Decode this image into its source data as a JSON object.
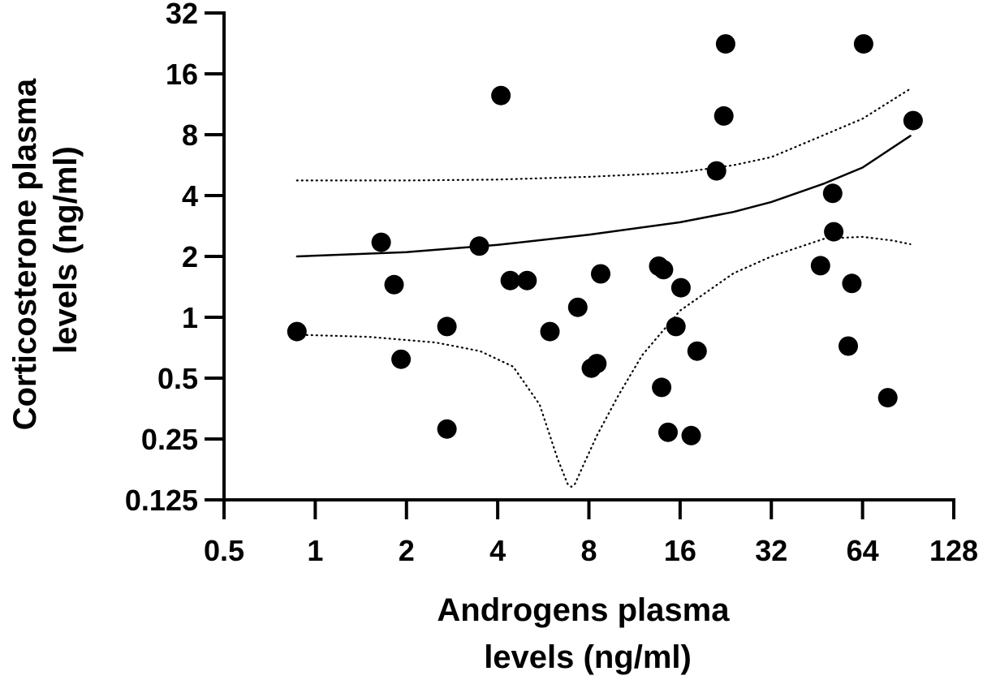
{
  "chart_data": {
    "type": "scatter",
    "xlabel": [
      "Androgens plasma",
      "levels (ng/ml)"
    ],
    "ylabel": [
      "Corticosterone plasma",
      "levels (ng/ml)"
    ],
    "xscale": "log2",
    "yscale": "log2",
    "xlim": [
      0.5,
      128
    ],
    "ylim": [
      0.125,
      32
    ],
    "xticks": [
      0.5,
      1,
      2,
      4,
      8,
      16,
      32,
      64,
      128
    ],
    "xtick_labels": [
      "0.5",
      "1",
      "2",
      "4",
      "8",
      "16",
      "32",
      "64",
      "128"
    ],
    "yticks": [
      0.125,
      0.25,
      0.5,
      1,
      2,
      4,
      8,
      16,
      32
    ],
    "ytick_labels": [
      "0.125",
      "0.25",
      "0.5",
      "1",
      "2",
      "4",
      "8",
      "16",
      "32"
    ],
    "grid": false,
    "points": [
      {
        "x": 0.87,
        "y": 0.85
      },
      {
        "x": 1.65,
        "y": 2.35
      },
      {
        "x": 1.82,
        "y": 1.45
      },
      {
        "x": 1.92,
        "y": 0.62
      },
      {
        "x": 2.72,
        "y": 0.9
      },
      {
        "x": 2.72,
        "y": 0.28
      },
      {
        "x": 3.48,
        "y": 2.25
      },
      {
        "x": 4.1,
        "y": 12.5
      },
      {
        "x": 4.4,
        "y": 1.52
      },
      {
        "x": 5.0,
        "y": 1.52
      },
      {
        "x": 5.95,
        "y": 0.85
      },
      {
        "x": 7.35,
        "y": 1.12
      },
      {
        "x": 8.15,
        "y": 0.56
      },
      {
        "x": 8.5,
        "y": 0.59
      },
      {
        "x": 8.75,
        "y": 1.64
      },
      {
        "x": 13.6,
        "y": 1.79
      },
      {
        "x": 14.1,
        "y": 1.72
      },
      {
        "x": 13.9,
        "y": 0.45
      },
      {
        "x": 14.6,
        "y": 0.27
      },
      {
        "x": 15.5,
        "y": 0.9
      },
      {
        "x": 16.1,
        "y": 1.4
      },
      {
        "x": 17.4,
        "y": 0.26
      },
      {
        "x": 18.2,
        "y": 0.68
      },
      {
        "x": 21.1,
        "y": 5.3
      },
      {
        "x": 22.3,
        "y": 9.9
      },
      {
        "x": 22.6,
        "y": 22.5
      },
      {
        "x": 46.5,
        "y": 1.8
      },
      {
        "x": 51.0,
        "y": 4.1
      },
      {
        "x": 51.4,
        "y": 2.65
      },
      {
        "x": 57.4,
        "y": 0.72
      },
      {
        "x": 59.0,
        "y": 1.47
      },
      {
        "x": 64.5,
        "y": 22.5
      },
      {
        "x": 77.5,
        "y": 0.4
      },
      {
        "x": 94.0,
        "y": 9.4
      }
    ],
    "fit_line": {
      "style": "solid",
      "x": [
        0.87,
        2,
        4,
        8,
        16,
        24,
        32,
        48,
        64,
        92
      ],
      "y": [
        2.0,
        2.1,
        2.28,
        2.56,
        2.95,
        3.32,
        3.72,
        4.6,
        5.5,
        7.9
      ]
    },
    "confidence_upper": {
      "style": "dotted",
      "x": [
        0.87,
        2,
        4,
        8,
        16,
        24,
        32,
        48,
        64,
        92
      ],
      "y": [
        4.75,
        4.75,
        4.8,
        4.95,
        5.2,
        5.65,
        6.2,
        8.0,
        9.6,
        13.5
      ]
    },
    "confidence_lower": {
      "style": "dotted",
      "x": [
        0.87,
        1.5,
        2.5,
        3.5,
        4.5,
        5.5,
        6.3,
        6.8,
        7.0,
        7.2,
        7.6,
        8.5,
        10,
        12,
        16,
        24,
        32,
        48,
        64,
        80,
        92
      ],
      "y": [
        0.82,
        0.8,
        0.75,
        0.68,
        0.57,
        0.37,
        0.2,
        0.15,
        0.145,
        0.15,
        0.18,
        0.26,
        0.41,
        0.65,
        1.08,
        1.65,
        2.0,
        2.45,
        2.5,
        2.4,
        2.3
      ]
    }
  }
}
